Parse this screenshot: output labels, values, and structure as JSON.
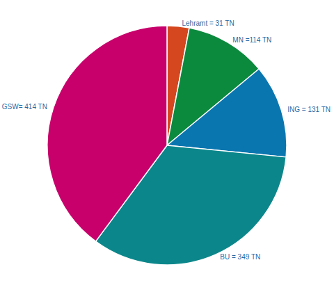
{
  "chart_data": {
    "type": "pie",
    "categories": [
      "Lehramt",
      "MN",
      "ING",
      "BU",
      "GSW"
    ],
    "values": [
      31,
      114,
      131,
      349,
      414
    ],
    "value_labels": [
      "Lehramt = 31 TN",
      "MN =114 TN",
      "ING = 131 TN",
      "BU = 349 TN",
      "GSW= 414 TN"
    ],
    "colors": [
      "#d4471f",
      "#0b8a3e",
      "#0a76b0",
      "#0b878b",
      "#c7006c"
    ],
    "data_labels": true,
    "legend": false
  }
}
